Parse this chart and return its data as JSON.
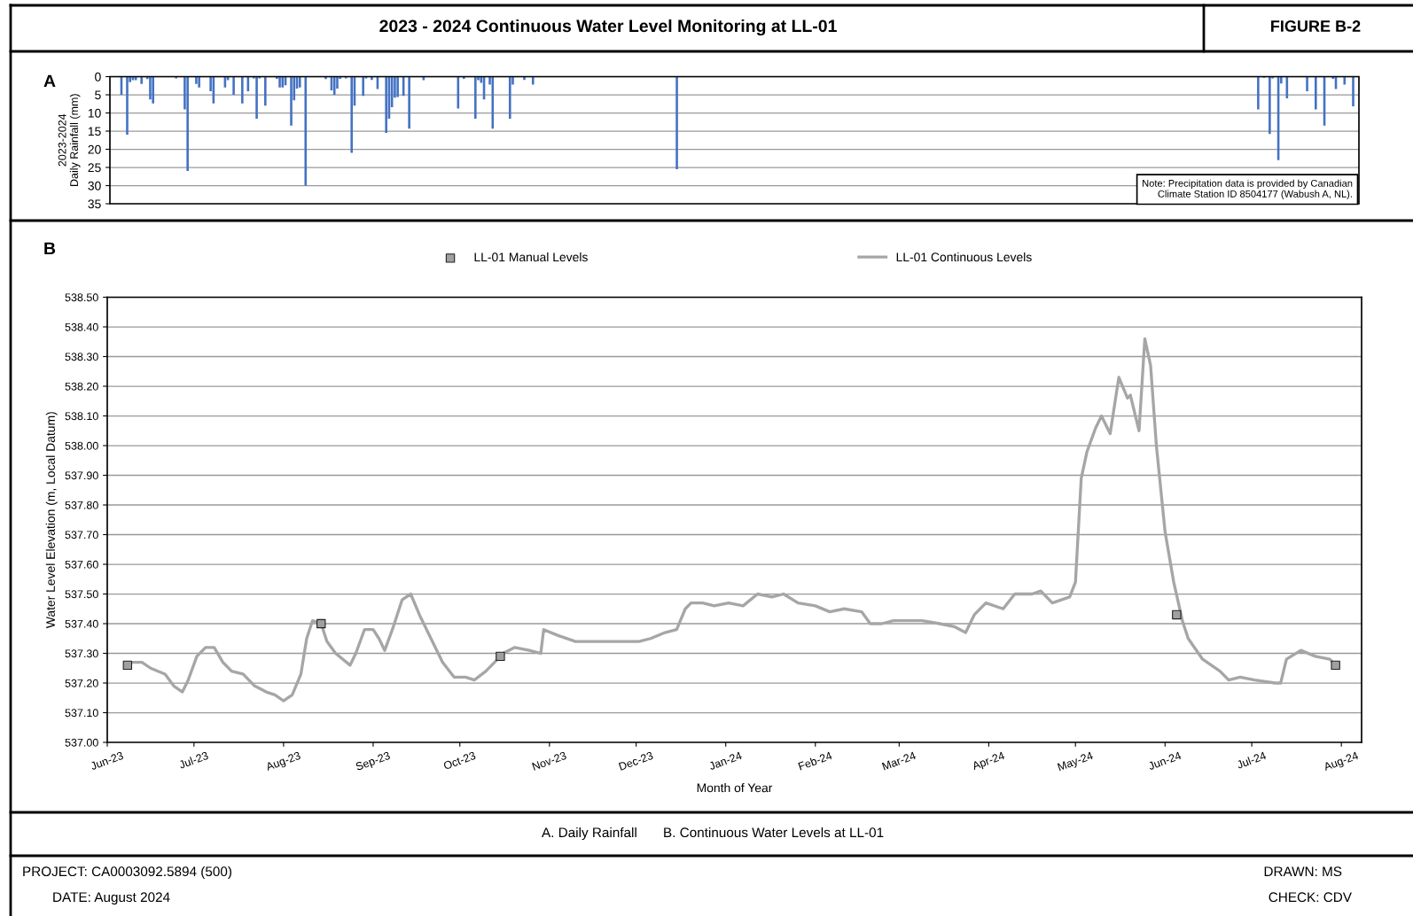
{
  "chart_data": [
    {
      "type": "bar",
      "title": "2023 - 2024 Continuous Water Level Monitoring at LL-01",
      "ylabel": "2023-2024\nDaily Rainfall (mm)",
      "annotations": [
        "FIGURE B-2",
        "A",
        "Note: Precipitation data is provided by Canadian\nClimate Station ID 8504177 (Wabush A, NL)."
      ],
      "color": "#4472c4",
      "x": [
        "2023-06-05",
        "2023-06-07",
        "2023-06-08",
        "2023-06-09",
        "2023-06-10",
        "2023-06-12",
        "2023-06-14",
        "2023-06-15",
        "2023-06-16",
        "2023-06-24",
        "2023-06-27",
        "2023-06-28",
        "2023-07-01",
        "2023-07-02",
        "2023-07-06",
        "2023-07-07",
        "2023-07-11",
        "2023-07-12",
        "2023-07-14",
        "2023-07-17",
        "2023-07-19",
        "2023-07-21",
        "2023-07-22",
        "2023-07-23",
        "2023-07-25",
        "2023-07-29",
        "2023-07-30",
        "2023-07-31",
        "2023-08-01",
        "2023-08-03",
        "2023-08-04",
        "2023-08-05",
        "2023-08-06",
        "2023-08-08",
        "2023-08-15",
        "2023-08-17",
        "2023-08-18",
        "2023-08-19",
        "2023-08-20",
        "2023-08-22",
        "2023-08-24",
        "2023-08-25",
        "2023-08-28",
        "2023-08-29",
        "2023-08-31",
        "2023-09-02",
        "2023-09-05",
        "2023-09-06",
        "2023-09-07",
        "2023-09-08",
        "2023-09-09",
        "2023-09-11",
        "2023-09-13",
        "2023-09-18",
        "2023-09-30",
        "2023-10-02",
        "2023-10-06",
        "2023-10-07",
        "2023-10-08",
        "2023-10-09",
        "2023-10-11",
        "2023-10-12",
        "2023-10-18",
        "2023-10-19",
        "2023-10-23",
        "2023-10-26",
        "2023-12-15",
        "2024-07-04",
        "2024-07-06",
        "2024-07-08",
        "2024-07-09",
        "2024-07-11",
        "2024-07-12",
        "2024-07-14",
        "2024-07-21",
        "2024-07-24",
        "2024-07-27",
        "2024-07-30",
        "2024-07-31",
        "2024-08-03",
        "2024-08-06"
      ],
      "values": [
        5,
        16,
        1.5,
        1,
        1,
        2,
        0.7,
        6.3,
        7.4,
        0.5,
        9,
        26,
        2,
        3,
        4,
        7.4,
        3,
        1,
        5,
        7.4,
        4,
        0.5,
        11.6,
        0.5,
        8,
        0.6,
        3,
        3,
        2.4,
        13.5,
        6.5,
        3.3,
        3,
        30,
        0.7,
        3.8,
        5,
        3.3,
        0.6,
        0.5,
        21,
        8,
        5.3,
        0.5,
        0.9,
        3.4,
        15.5,
        11.6,
        8.4,
        5.8,
        5.6,
        5.3,
        14.3,
        1,
        8.8,
        0.6,
        11.6,
        1,
        1.7,
        6.3,
        2.2,
        14.3,
        11.6,
        2.2,
        0.9,
        2.2,
        25.5,
        9,
        0.3,
        15.8,
        0.5,
        23,
        1.9,
        6,
        4,
        9,
        13.5,
        0.6,
        3.4,
        2.2,
        8.2
      ],
      "xlim": [
        "2023-06-01",
        "2024-08-08"
      ],
      "ylim": [
        35,
        0
      ],
      "yticks": [
        0,
        5,
        10,
        15,
        20,
        25,
        30,
        35
      ],
      "grid": "y",
      "tick_labels": "y"
    },
    {
      "type": "line",
      "xlabel": "Month of Year",
      "ylabel": "Water Level Elevation (m, Local Datum)",
      "annotations": [
        "B",
        "A. Daily Rainfall",
        "B. Continuous Water Levels at LL-01",
        "PROJECT: CA0003092.5894 (500)",
        "DATE: August 2024",
        "DRAWN: MS",
        "CHECK: CDV"
      ],
      "series": [
        {
          "name": "LL-01 Manual Levels",
          "type": "scatter",
          "marker": "square",
          "color": "#a0a0a0",
          "x": [
            "2023-06-08",
            "2023-08-14",
            "2023-10-15",
            "2024-06-05",
            "2024-07-30"
          ],
          "values": [
            537.26,
            537.4,
            537.29,
            537.43,
            537.26
          ]
        },
        {
          "name": "LL-01 Continuous Levels",
          "type": "line",
          "color": "#a6a6a6",
          "x": [
            "2023-06-08",
            "2023-06-13",
            "2023-06-16",
            "2023-06-21",
            "2023-06-24",
            "2023-06-27",
            "2023-06-29",
            "2023-07-02",
            "2023-07-05",
            "2023-07-08",
            "2023-07-11",
            "2023-07-14",
            "2023-07-18",
            "2023-07-22",
            "2023-07-26",
            "2023-07-29",
            "2023-08-01",
            "2023-08-04",
            "2023-08-07",
            "2023-08-09",
            "2023-08-11",
            "2023-08-14",
            "2023-08-16",
            "2023-08-19",
            "2023-08-24",
            "2023-08-26",
            "2023-08-29",
            "2023-09-01",
            "2023-09-03",
            "2023-09-05",
            "2023-09-08",
            "2023-09-11",
            "2023-09-14",
            "2023-09-17",
            "2023-09-21",
            "2023-09-25",
            "2023-09-29",
            "2023-10-03",
            "2023-10-06",
            "2023-10-10",
            "2023-10-13",
            "2023-10-16",
            "2023-10-20",
            "2023-10-25",
            "2023-10-29",
            "2023-10-30",
            "2023-11-04",
            "2023-11-10",
            "2023-11-17",
            "2023-11-25",
            "2023-12-02",
            "2023-12-06",
            "2023-12-11",
            "2023-12-15",
            "2023-12-18",
            "2023-12-20",
            "2023-12-24",
            "2023-12-28",
            "2024-01-02",
            "2024-01-07",
            "2024-01-12",
            "2024-01-17",
            "2024-01-21",
            "2024-01-26",
            "2024-02-01",
            "2024-02-06",
            "2024-02-11",
            "2024-02-17",
            "2024-02-20",
            "2024-02-24",
            "2024-02-28",
            "2024-03-02",
            "2024-03-09",
            "2024-03-15",
            "2024-03-20",
            "2024-03-24",
            "2024-03-27",
            "2024-03-31",
            "2024-04-06",
            "2024-04-10",
            "2024-04-16",
            "2024-04-19",
            "2024-04-23",
            "2024-04-29",
            "2024-05-01",
            "2024-05-03",
            "2024-05-05",
            "2024-05-08",
            "2024-05-10",
            "2024-05-13",
            "2024-05-16",
            "2024-05-19",
            "2024-05-20",
            "2024-05-23",
            "2024-05-25",
            "2024-05-27",
            "2024-05-29",
            "2024-06-01",
            "2024-06-04",
            "2024-06-07",
            "2024-06-09",
            "2024-06-14",
            "2024-06-20",
            "2024-06-23",
            "2024-06-27",
            "2024-07-02",
            "2024-07-09",
            "2024-07-11",
            "2024-07-13",
            "2024-07-18",
            "2024-07-23",
            "2024-07-28",
            "2024-07-30"
          ],
          "values": [
            537.27,
            537.27,
            537.25,
            537.23,
            537.19,
            537.17,
            537.21,
            537.29,
            537.32,
            537.32,
            537.27,
            537.24,
            537.23,
            537.19,
            537.17,
            537.16,
            537.14,
            537.16,
            537.23,
            537.35,
            537.41,
            537.4,
            537.34,
            537.3,
            537.26,
            537.3,
            537.38,
            537.38,
            537.35,
            537.31,
            537.39,
            537.48,
            537.5,
            537.43,
            537.35,
            537.27,
            537.22,
            537.22,
            537.21,
            537.24,
            537.27,
            537.3,
            537.32,
            537.31,
            537.3,
            537.38,
            537.36,
            537.34,
            537.34,
            537.34,
            537.34,
            537.35,
            537.37,
            537.38,
            537.45,
            537.47,
            537.47,
            537.46,
            537.47,
            537.46,
            537.5,
            537.49,
            537.5,
            537.47,
            537.46,
            537.44,
            537.45,
            537.44,
            537.4,
            537.4,
            537.41,
            537.41,
            537.41,
            537.4,
            537.39,
            537.37,
            537.43,
            537.47,
            537.45,
            537.5,
            537.5,
            537.51,
            537.47,
            537.49,
            537.54,
            537.89,
            537.98,
            538.06,
            538.1,
            538.04,
            538.23,
            538.16,
            538.17,
            538.05,
            538.36,
            538.27,
            538.0,
            537.71,
            537.54,
            537.41,
            537.35,
            537.28,
            537.24,
            537.21,
            537.22,
            537.21,
            537.2,
            537.2,
            537.28,
            537.31,
            537.29,
            537.28,
            537.26
          ]
        }
      ],
      "xlim": [
        "2023-06-01",
        "2024-08-08"
      ],
      "xticks": [
        {
          "value": "2023-06-01",
          "label": "Jun-23"
        },
        {
          "value": "2023-07-01",
          "label": "Jul-23"
        },
        {
          "value": "2023-08-01",
          "label": "Aug-23"
        },
        {
          "value": "2023-09-01",
          "label": "Sep-23"
        },
        {
          "value": "2023-10-01",
          "label": "Oct-23"
        },
        {
          "value": "2023-11-01",
          "label": "Nov-23"
        },
        {
          "value": "2023-12-01",
          "label": "Dec-23"
        },
        {
          "value": "2024-01-01",
          "label": "Jan-24"
        },
        {
          "value": "2024-02-01",
          "label": "Feb-24"
        },
        {
          "value": "2024-03-01",
          "label": "Mar-24"
        },
        {
          "value": "2024-04-01",
          "label": "Apr-24"
        },
        {
          "value": "2024-05-01",
          "label": "May-24"
        },
        {
          "value": "2024-06-01",
          "label": "Jun-24"
        },
        {
          "value": "2024-07-01",
          "label": "Jul-24"
        },
        {
          "value": "2024-08-01",
          "label": "Aug-24"
        }
      ],
      "ylim": [
        537.0,
        538.5
      ],
      "yticks": [
        {
          "value": 537.0,
          "label": "537.00"
        },
        {
          "value": 537.1,
          "label": "537.10"
        },
        {
          "value": 537.2,
          "label": "537.20"
        },
        {
          "value": 537.3,
          "label": "537.30"
        },
        {
          "value": 537.4,
          "label": "537.40"
        },
        {
          "value": 537.5,
          "label": "537.50"
        },
        {
          "value": 537.6,
          "label": "537.60"
        },
        {
          "value": 537.7,
          "label": "537.70"
        },
        {
          "value": 537.8,
          "label": "537.80"
        },
        {
          "value": 537.9,
          "label": "537.90"
        },
        {
          "value": 538.0,
          "label": "538.00"
        },
        {
          "value": 538.1,
          "label": "538.10"
        },
        {
          "value": 538.2,
          "label": "538.20"
        },
        {
          "value": 538.3,
          "label": "538.30"
        },
        {
          "value": 538.4,
          "label": "538.40"
        },
        {
          "value": 538.5,
          "label": "538.50"
        }
      ],
      "grid": "y",
      "legend": "top"
    }
  ]
}
